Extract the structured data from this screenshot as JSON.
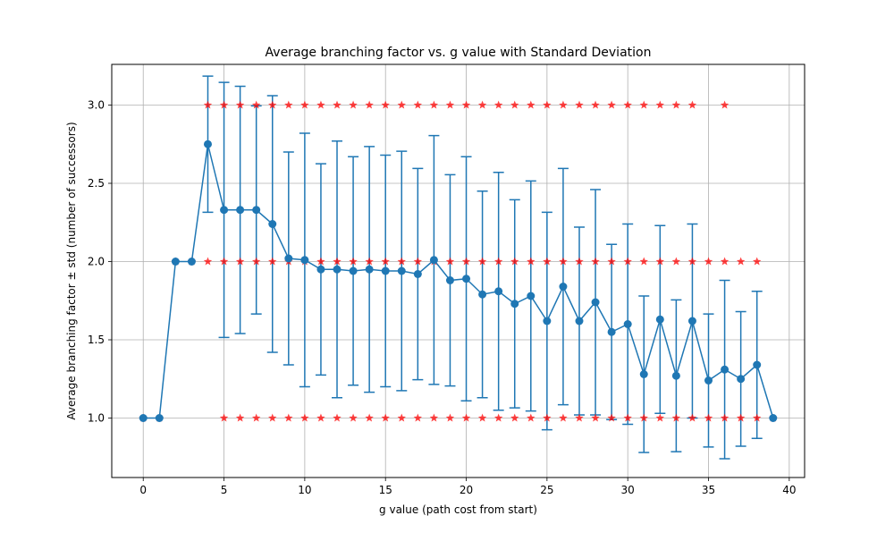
{
  "chart_data": {
    "type": "line",
    "title": "Average branching factor vs. g value with Standard Deviation",
    "xlabel": "g value (path cost from start)",
    "ylabel": "Average branching factor ± std (number of successors)",
    "xlim": [
      -1.95,
      40.95
    ],
    "ylim": [
      0.62,
      3.26
    ],
    "xticks": [
      0,
      5,
      10,
      15,
      20,
      25,
      30,
      35,
      40
    ],
    "xtick_labels": [
      "0",
      "5",
      "10",
      "15",
      "20",
      "25",
      "30",
      "35",
      "40"
    ],
    "yticks": [
      1.0,
      1.5,
      2.0,
      2.5,
      3.0
    ],
    "ytick_labels": [
      "1.0",
      "1.5",
      "2.0",
      "2.5",
      "3.0"
    ],
    "grid": true,
    "colors": {
      "mean": "#1f77b4",
      "samples": "#ff0000"
    },
    "series": [
      {
        "kind": "mean_with_std",
        "x": [
          0,
          1,
          2,
          3,
          4,
          5,
          6,
          7,
          8,
          9,
          10,
          11,
          12,
          13,
          14,
          15,
          16,
          17,
          18,
          19,
          20,
          21,
          22,
          23,
          24,
          25,
          26,
          27,
          28,
          29,
          30,
          31,
          32,
          33,
          34,
          35,
          36,
          37,
          38,
          39
        ],
        "mean": [
          1.0,
          1.0,
          2.0,
          2.0,
          2.75,
          2.33,
          2.33,
          2.33,
          2.24,
          2.02,
          2.01,
          1.95,
          1.95,
          1.94,
          1.95,
          1.94,
          1.94,
          1.92,
          2.01,
          1.88,
          1.89,
          1.79,
          1.81,
          1.73,
          1.78,
          1.62,
          1.84,
          1.62,
          1.74,
          1.55,
          1.6,
          1.28,
          1.63,
          1.27,
          1.62,
          1.24,
          1.31,
          1.25,
          1.34,
          1.0
        ],
        "std": [
          0,
          0,
          0,
          0,
          0.435,
          0.815,
          0.79,
          0.665,
          0.82,
          0.68,
          0.81,
          0.675,
          0.82,
          0.73,
          0.785,
          0.74,
          0.765,
          0.675,
          0.795,
          0.675,
          0.78,
          0.66,
          0.76,
          0.665,
          0.735,
          0.695,
          0.755,
          0.6,
          0.72,
          0.56,
          0.64,
          0.5,
          0.6,
          0.485,
          0.62,
          0.425,
          0.57,
          0.43,
          0.47,
          0
        ]
      },
      {
        "kind": "samples",
        "points": [
          [
            0,
            1
          ],
          [
            1,
            1
          ],
          [
            2,
            2
          ],
          [
            3,
            2
          ],
          [
            4,
            3
          ],
          [
            4,
            2
          ],
          [
            5,
            3
          ],
          [
            5,
            2
          ],
          [
            5,
            1
          ],
          [
            6,
            3
          ],
          [
            6,
            2
          ],
          [
            6,
            1
          ],
          [
            7,
            3
          ],
          [
            7,
            2
          ],
          [
            7,
            1
          ],
          [
            8,
            3
          ],
          [
            8,
            2
          ],
          [
            8,
            1
          ],
          [
            9,
            3
          ],
          [
            9,
            2
          ],
          [
            9,
            1
          ],
          [
            10,
            3
          ],
          [
            10,
            2
          ],
          [
            10,
            1
          ],
          [
            11,
            3
          ],
          [
            11,
            2
          ],
          [
            11,
            1
          ],
          [
            12,
            3
          ],
          [
            12,
            2
          ],
          [
            12,
            1
          ],
          [
            13,
            3
          ],
          [
            13,
            2
          ],
          [
            13,
            1
          ],
          [
            14,
            3
          ],
          [
            14,
            2
          ],
          [
            14,
            1
          ],
          [
            15,
            3
          ],
          [
            15,
            2
          ],
          [
            15,
            1
          ],
          [
            16,
            3
          ],
          [
            16,
            2
          ],
          [
            16,
            1
          ],
          [
            17,
            3
          ],
          [
            17,
            2
          ],
          [
            17,
            1
          ],
          [
            18,
            3
          ],
          [
            18,
            2
          ],
          [
            18,
            1
          ],
          [
            19,
            3
          ],
          [
            19,
            2
          ],
          [
            19,
            1
          ],
          [
            20,
            3
          ],
          [
            20,
            2
          ],
          [
            20,
            1
          ],
          [
            21,
            3
          ],
          [
            21,
            2
          ],
          [
            21,
            1
          ],
          [
            22,
            3
          ],
          [
            22,
            2
          ],
          [
            22,
            1
          ],
          [
            23,
            3
          ],
          [
            23,
            2
          ],
          [
            23,
            1
          ],
          [
            24,
            3
          ],
          [
            24,
            2
          ],
          [
            24,
            1
          ],
          [
            25,
            3
          ],
          [
            25,
            2
          ],
          [
            25,
            1
          ],
          [
            26,
            3
          ],
          [
            26,
            2
          ],
          [
            26,
            1
          ],
          [
            27,
            3
          ],
          [
            27,
            2
          ],
          [
            27,
            1
          ],
          [
            28,
            3
          ],
          [
            28,
            2
          ],
          [
            28,
            1
          ],
          [
            29,
            3
          ],
          [
            29,
            2
          ],
          [
            29,
            1
          ],
          [
            30,
            3
          ],
          [
            30,
            2
          ],
          [
            30,
            1
          ],
          [
            31,
            3
          ],
          [
            31,
            2
          ],
          [
            31,
            1
          ],
          [
            32,
            3
          ],
          [
            32,
            2
          ],
          [
            32,
            1
          ],
          [
            33,
            3
          ],
          [
            33,
            2
          ],
          [
            33,
            1
          ],
          [
            34,
            3
          ],
          [
            34,
            2
          ],
          [
            34,
            1
          ],
          [
            35,
            2
          ],
          [
            35,
            1
          ],
          [
            36,
            3
          ],
          [
            36,
            2
          ],
          [
            36,
            1
          ],
          [
            37,
            2
          ],
          [
            37,
            1
          ],
          [
            38,
            2
          ],
          [
            38,
            1
          ],
          [
            39,
            1
          ]
        ]
      }
    ]
  }
}
